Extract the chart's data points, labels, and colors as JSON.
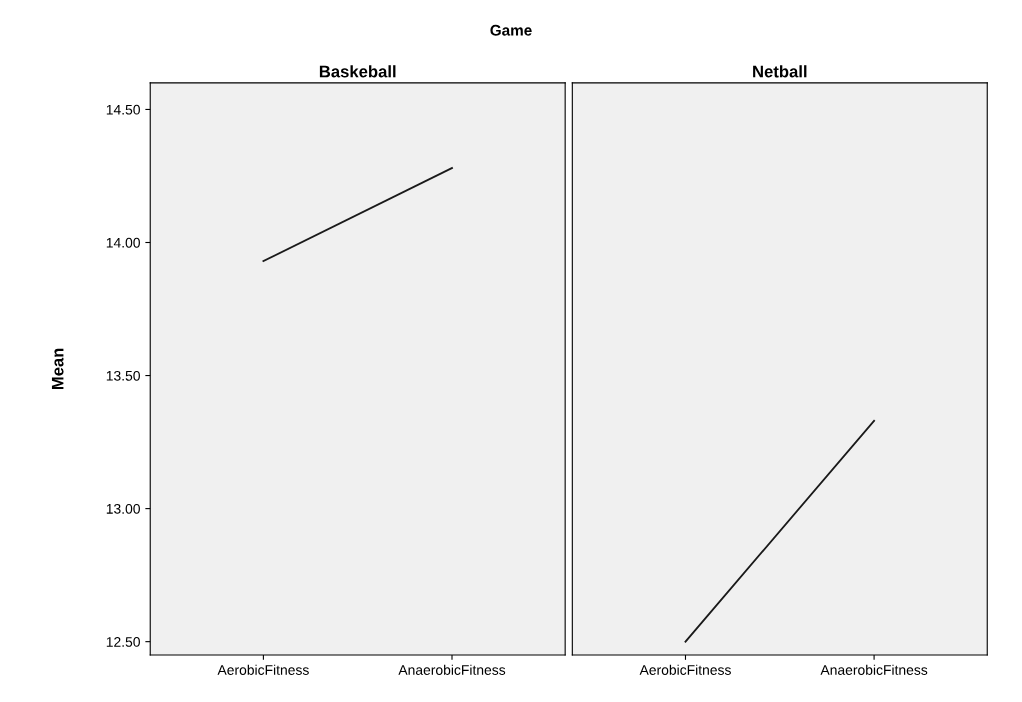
{
  "chart_data": [
    {
      "type": "line",
      "title": "Baskeball",
      "ylabel": "Mean",
      "annotations": [
        "Game"
      ],
      "categories": [
        "AerobicFitness",
        "AnaerobicFitness"
      ],
      "series": [
        {
          "color": "#1a1a1a",
          "values": [
            13.93,
            14.28
          ]
        }
      ],
      "ylim": [
        12.45,
        14.6
      ],
      "yticks": [
        {
          "value": 12.5,
          "label": "12.50"
        },
        {
          "value": 13,
          "label": "13.00"
        },
        {
          "value": 13.5,
          "label": "13.50"
        },
        {
          "value": 14,
          "label": "14.00"
        },
        {
          "value": 14.5,
          "label": "14.50"
        }
      ],
      "grid": false,
      "legend": false
    },
    {
      "type": "line",
      "title": "Netball",
      "categories": [
        "AerobicFitness",
        "AnaerobicFitness"
      ],
      "series": [
        {
          "color": "#1a1a1a",
          "values": [
            12.5,
            13.33
          ]
        }
      ],
      "ylim": [
        12.45,
        14.6
      ],
      "tick_labels": "x",
      "grid": false,
      "legend": false
    }
  ]
}
